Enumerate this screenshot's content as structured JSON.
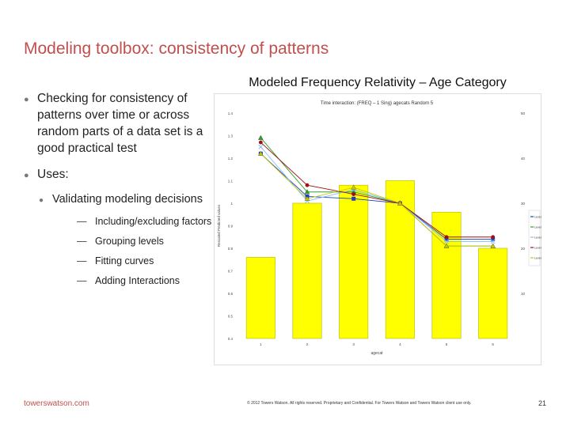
{
  "slide": {
    "title": "Modeling toolbox: consistency of patterns",
    "bullets": [
      "Checking for consistency of patterns over time or across random parts of a data set is a good practical test",
      "Uses:"
    ],
    "sub_bullet": "Validating modeling decisions",
    "sub_sub_bullets": [
      "Including/excluding factors",
      "Grouping levels",
      "Fitting curves",
      "Adding Interactions"
    ],
    "chart_heading": "Modeled Frequency Relativity – Age Category",
    "footer_brand": "towerswatson.com",
    "footer_copyright": "© 2012 Towers Watson. All rights reserved. Proprietary and Confidential. For Towers Watson and Towers Watson client use only.",
    "page_number": "21"
  },
  "chart_data": {
    "type": "bar+line",
    "title": "Time interaction: (FREQ – 1 Sing) agecats Random 5",
    "xlabel": "agecat",
    "ylabel": "Rescaled Predicted values",
    "categories": [
      "1",
      "2",
      "3",
      "4",
      "5",
      "6"
    ],
    "bars": {
      "color": "#ffff00",
      "values": [
        18,
        30,
        34,
        35,
        28,
        20
      ],
      "axis_ticks": [
        10,
        20,
        30,
        40,
        50
      ]
    },
    "left_axis_ticks": [
      "1.4",
      "1.3",
      "1.2",
      "1.1",
      "1",
      "0.9",
      "0.8",
      "0.7",
      "0.6",
      "0.5",
      "0.4"
    ],
    "line_ylim": [
      0.4,
      1.4
    ],
    "series": [
      {
        "name": "Level 1",
        "color": "#1f3fbf",
        "marker": "square",
        "values": [
          1.22,
          1.03,
          1.02,
          1.0,
          0.84,
          0.84
        ]
      },
      {
        "name": "Level 2",
        "color": "#2ca02c",
        "marker": "triangle",
        "values": [
          1.29,
          1.05,
          1.05,
          1.0,
          0.81,
          0.81
        ]
      },
      {
        "name": "Level 3",
        "color": "#7fbfff",
        "marker": "cross",
        "values": [
          1.25,
          1.01,
          1.06,
          1.0,
          0.83,
          0.83
        ]
      },
      {
        "name": "Level 4",
        "color": "#a01010",
        "marker": "circle",
        "values": [
          1.27,
          1.08,
          1.04,
          1.0,
          0.85,
          0.85
        ]
      },
      {
        "name": "Level 5",
        "color": "#c8c800",
        "marker": "triangle",
        "values": [
          1.22,
          1.02,
          1.07,
          1.0,
          0.81,
          0.81
        ]
      }
    ],
    "legend_position": "right",
    "grid": false
  }
}
